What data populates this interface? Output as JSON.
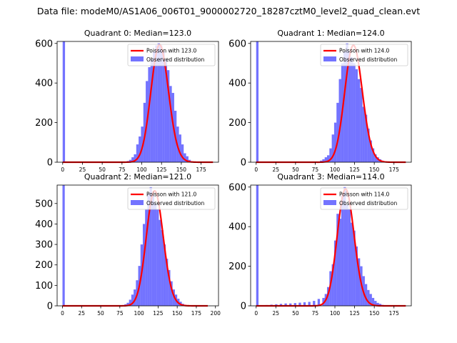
{
  "figure": {
    "suptitle": "Data file: modeM0/AS1A06_006T01_9000002720_18287cztM0_level2_quad_clean.evt"
  },
  "colors": {
    "hist": "#0000ff",
    "hist_opacity": 0.55,
    "curve": "#ff0000"
  },
  "chart_data": [
    {
      "type": "bar",
      "title": "Quadrant 0: Median=123.0",
      "legend": [
        "Poisson with 123.0",
        "Observed distribution"
      ],
      "legend_loc": "upper right",
      "xlim": [
        -7,
        197
      ],
      "ylim": [
        0,
        610
      ],
      "xticks": [
        0,
        25,
        50,
        75,
        100,
        125,
        150,
        175
      ],
      "yticks": [
        0,
        200,
        400,
        600
      ],
      "bin_width": 3,
      "bins": [
        [
          0,
          610
        ],
        [
          78,
          3
        ],
        [
          81,
          6
        ],
        [
          84,
          12
        ],
        [
          87,
          25
        ],
        [
          90,
          40
        ],
        [
          93,
          90
        ],
        [
          96,
          130
        ],
        [
          99,
          180
        ],
        [
          102,
          300
        ],
        [
          105,
          410
        ],
        [
          108,
          480
        ],
        [
          111,
          520
        ],
        [
          114,
          560
        ],
        [
          117,
          590
        ],
        [
          120,
          600
        ],
        [
          123,
          590
        ],
        [
          126,
          560
        ],
        [
          129,
          520
        ],
        [
          132,
          465
        ],
        [
          135,
          385
        ],
        [
          138,
          350
        ],
        [
          141,
          260
        ],
        [
          144,
          180
        ],
        [
          147,
          140
        ],
        [
          150,
          90
        ],
        [
          153,
          45
        ],
        [
          156,
          30
        ],
        [
          159,
          12
        ],
        [
          162,
          5
        ]
      ],
      "poisson_mean": 123.0,
      "poisson_scale": 16500,
      "curve_range": [
        0,
        190
      ]
    },
    {
      "type": "bar",
      "title": "Quadrant 1: Median=124.0",
      "legend": [
        "Poisson with 124.0",
        "Observed distribution"
      ],
      "legend_loc": "upper right",
      "xlim": [
        -7,
        197
      ],
      "ylim": [
        0,
        610
      ],
      "xticks": [
        0,
        25,
        50,
        75,
        100,
        125,
        150,
        175
      ],
      "yticks": [
        0,
        200,
        400,
        600
      ],
      "bin_width": 3,
      "bins": [
        [
          0,
          610
        ],
        [
          78,
          3
        ],
        [
          81,
          8
        ],
        [
          84,
          15
        ],
        [
          87,
          25
        ],
        [
          90,
          35
        ],
        [
          93,
          70
        ],
        [
          96,
          140
        ],
        [
          99,
          200
        ],
        [
          102,
          300
        ],
        [
          105,
          420
        ],
        [
          108,
          500
        ],
        [
          111,
          560
        ],
        [
          114,
          600
        ],
        [
          117,
          560
        ],
        [
          120,
          530
        ],
        [
          123,
          500
        ],
        [
          126,
          470
        ],
        [
          129,
          420
        ],
        [
          132,
          375
        ],
        [
          135,
          280
        ],
        [
          138,
          240
        ],
        [
          141,
          170
        ],
        [
          144,
          110
        ],
        [
          147,
          70
        ],
        [
          150,
          40
        ],
        [
          153,
          25
        ],
        [
          156,
          15
        ],
        [
          159,
          8
        ],
        [
          162,
          4
        ]
      ],
      "poisson_mean": 124.0,
      "poisson_scale": 16500,
      "curve_range": [
        0,
        190
      ]
    },
    {
      "type": "bar",
      "title": "Quadrant 2: Median=121.0",
      "legend": [
        "Poisson with 121.0",
        "Observed distribution"
      ],
      "legend_loc": "upper right",
      "xlim": [
        -7,
        204
      ],
      "ylim": [
        0,
        590
      ],
      "xticks": [
        0,
        25,
        50,
        75,
        100,
        125,
        150,
        175,
        200
      ],
      "yticks": [
        0,
        100,
        200,
        300,
        400,
        500
      ],
      "bin_width": 3,
      "bins": [
        [
          0,
          590
        ],
        [
          75,
          2
        ],
        [
          78,
          4
        ],
        [
          81,
          8
        ],
        [
          84,
          15
        ],
        [
          87,
          30
        ],
        [
          90,
          55
        ],
        [
          93,
          80
        ],
        [
          96,
          125
        ],
        [
          99,
          195
        ],
        [
          102,
          300
        ],
        [
          105,
          400
        ],
        [
          108,
          470
        ],
        [
          111,
          550
        ],
        [
          114,
          580
        ],
        [
          117,
          540
        ],
        [
          120,
          500
        ],
        [
          123,
          470
        ],
        [
          126,
          420
        ],
        [
          129,
          370
        ],
        [
          132,
          300
        ],
        [
          135,
          230
        ],
        [
          138,
          175
        ],
        [
          141,
          120
        ],
        [
          144,
          80
        ],
        [
          147,
          55
        ],
        [
          150,
          35
        ],
        [
          153,
          20
        ],
        [
          156,
          10
        ],
        [
          159,
          5
        ]
      ],
      "poisson_mean": 121.0,
      "poisson_scale": 15500,
      "curve_range": [
        0,
        190
      ]
    },
    {
      "type": "bar",
      "title": "Quadrant 3: Median=114.0",
      "legend": [
        "Poisson with 114.0",
        "Observed distribution"
      ],
      "legend_loc": "upper right",
      "xlim": [
        -7,
        197
      ],
      "ylim": [
        0,
        610
      ],
      "xticks": [
        0,
        25,
        50,
        75,
        100,
        125,
        150,
        175
      ],
      "yticks": [
        0,
        200,
        400,
        600
      ],
      "bin_width": 3,
      "bins": [
        [
          0,
          610
        ],
        [
          12,
          4
        ],
        [
          18,
          6
        ],
        [
          24,
          8
        ],
        [
          30,
          10
        ],
        [
          36,
          12
        ],
        [
          42,
          12
        ],
        [
          48,
          14
        ],
        [
          54,
          16
        ],
        [
          60,
          18
        ],
        [
          66,
          20
        ],
        [
          72,
          25
        ],
        [
          78,
          35
        ],
        [
          84,
          40
        ],
        [
          87,
          60
        ],
        [
          90,
          95
        ],
        [
          93,
          175
        ],
        [
          96,
          210
        ],
        [
          99,
          330
        ],
        [
          102,
          465
        ],
        [
          105,
          440
        ],
        [
          108,
          560
        ],
        [
          111,
          600
        ],
        [
          114,
          510
        ],
        [
          117,
          490
        ],
        [
          120,
          420
        ],
        [
          123,
          380
        ],
        [
          126,
          300
        ],
        [
          129,
          240
        ],
        [
          132,
          200
        ],
        [
          135,
          150
        ],
        [
          138,
          110
        ],
        [
          141,
          80
        ],
        [
          144,
          60
        ],
        [
          147,
          40
        ],
        [
          150,
          25
        ],
        [
          153,
          15
        ],
        [
          156,
          10
        ],
        [
          159,
          5
        ]
      ],
      "poisson_mean": 114.0,
      "poisson_scale": 15800,
      "curve_range": [
        0,
        190
      ]
    }
  ]
}
